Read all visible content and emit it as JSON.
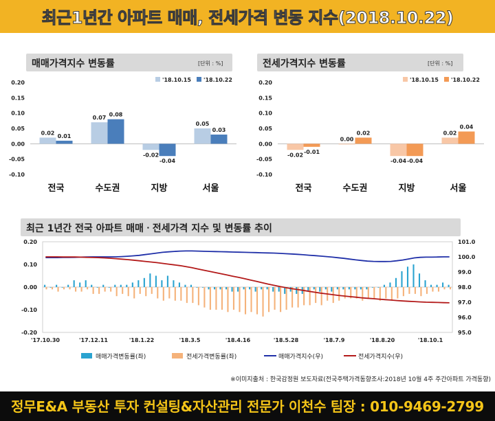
{
  "title": "최근1년간 아파트 매매, 전세가격 변동 지수(2018.10.22)",
  "footer": "정무E&A 부동산 투자 컨설팅&자산관리 전문가 이천수 팀장 : 010-9469-2799",
  "source": "※이미지출처 : 한국감정원 보도자료(전국주택가격동향조사:2018년 10월 4주 주간아파트 가격동향)",
  "colors": {
    "sale_prev": "#b8cde4",
    "sale_curr": "#4a7ebb",
    "jeonse_prev": "#f8c7a6",
    "jeonse_curr": "#f39a55",
    "line_blue": "#1f2fa8",
    "line_red": "#b31919",
    "bar_blue": "#2aa3d0",
    "bar_orange": "#f5b27a"
  },
  "chart_data": [
    {
      "type": "bar",
      "title": "매매가격지수 변동률",
      "unit": "[단위 : %]",
      "categories": [
        "전국",
        "수도권",
        "지방",
        "서울"
      ],
      "series": [
        {
          "name": "'18.10.15",
          "values": [
            0.02,
            0.07,
            -0.02,
            0.05
          ]
        },
        {
          "name": "'18.10.22",
          "values": [
            0.01,
            0.08,
            -0.04,
            0.03
          ]
        }
      ],
      "data_labels": [
        [
          "0.02",
          "0.07",
          "-0.02",
          "0.05"
        ],
        [
          "0.01",
          "0.08",
          "-0.04",
          "0.03"
        ]
      ],
      "ylim": [
        -0.1,
        0.2
      ],
      "yticks": [
        "0.20",
        "0.15",
        "0.10",
        "0.05",
        "0.00",
        "-0.05",
        "-0.10"
      ],
      "legend": "top-right"
    },
    {
      "type": "bar",
      "title": "전세가격지수 변동률",
      "unit": "[단위 : %]",
      "categories": [
        "전국",
        "수도권",
        "지방",
        "서울"
      ],
      "series": [
        {
          "name": "'18.10.15",
          "values": [
            -0.02,
            0.0,
            -0.04,
            0.02
          ]
        },
        {
          "name": "'18.10.22",
          "values": [
            -0.01,
            0.02,
            -0.04,
            0.04
          ]
        }
      ],
      "data_labels": [
        [
          "-0.02",
          "0.00",
          "-0.04",
          "0.02"
        ],
        [
          "-0.01",
          "0.02",
          "-0.04",
          "0.04"
        ]
      ],
      "ylim": [
        -0.1,
        0.2
      ],
      "yticks": [
        "0.20",
        "0.15",
        "0.10",
        "0.05",
        "0.00",
        "-0.05",
        "-0.10"
      ],
      "legend": "top-right"
    },
    {
      "type": "line",
      "title": "최근 1년간 전국 아파트 매매ㆍ전세가격 지수 및 변동률 추이",
      "x_tick_labels": [
        "'17.10.30",
        "'17.12.11",
        "'18.1.22",
        "'18.3.5",
        "'18.4.16",
        "'18.5.28",
        "'18.7.9",
        "'18.8.20",
        "'18.10.1"
      ],
      "ylim_left": [
        -0.2,
        0.2
      ],
      "yticks_left": [
        "0.20",
        "0.10",
        "0.00",
        "-0.10",
        "-0.20"
      ],
      "ylim_right": [
        95.0,
        101.0
      ],
      "yticks_right": [
        "101.0",
        "100.0",
        "99.0",
        "98.0",
        "97.0",
        "96.0",
        "95.0"
      ],
      "legend": "bottom",
      "series": [
        {
          "name": "매매가격변동률(좌)",
          "kind": "bar",
          "axis": "left",
          "values": [
            0.01,
            0.0,
            0.01,
            0.0,
            0.01,
            0.03,
            0.02,
            0.03,
            0.01,
            0.0,
            0.01,
            0.0,
            0.01,
            0.01,
            0.01,
            0.02,
            0.03,
            0.04,
            0.06,
            0.05,
            0.03,
            0.05,
            0.03,
            0.02,
            0.01,
            0.01,
            0.0,
            0.0,
            -0.01,
            -0.01,
            -0.01,
            -0.01,
            -0.02,
            -0.02,
            -0.01,
            -0.01,
            -0.02,
            -0.01,
            -0.01,
            -0.02,
            -0.02,
            -0.03,
            -0.02,
            -0.03,
            -0.03,
            -0.02,
            -0.01,
            -0.02,
            -0.01,
            -0.02,
            -0.01,
            -0.01,
            -0.01,
            -0.01,
            -0.01,
            -0.01,
            0.0,
            0.0,
            0.01,
            0.02,
            0.04,
            0.07,
            0.09,
            0.1,
            0.06,
            0.03,
            0.01,
            0.01,
            0.02,
            0.01
          ]
        },
        {
          "name": "전세가격변동률(좌)",
          "kind": "bar",
          "axis": "left",
          "values": [
            -0.01,
            -0.01,
            -0.02,
            -0.01,
            -0.01,
            -0.02,
            -0.02,
            -0.01,
            -0.03,
            -0.03,
            -0.02,
            -0.02,
            -0.04,
            -0.03,
            -0.04,
            -0.05,
            -0.03,
            -0.04,
            -0.03,
            -0.05,
            -0.06,
            -0.05,
            -0.06,
            -0.06,
            -0.07,
            -0.07,
            -0.08,
            -0.09,
            -0.1,
            -0.1,
            -0.1,
            -0.11,
            -0.1,
            -0.11,
            -0.12,
            -0.11,
            -0.12,
            -0.13,
            -0.11,
            -0.1,
            -0.11,
            -0.1,
            -0.09,
            -0.09,
            -0.08,
            -0.08,
            -0.07,
            -0.08,
            -0.06,
            -0.07,
            -0.06,
            -0.05,
            -0.05,
            -0.05,
            -0.06,
            -0.05,
            -0.05,
            -0.06,
            -0.05,
            -0.06,
            -0.05,
            -0.04,
            -0.03,
            -0.03,
            -0.04,
            -0.03,
            -0.02,
            -0.02,
            -0.01,
            -0.01
          ]
        },
        {
          "name": "매매가격지수(우)",
          "kind": "line",
          "axis": "right",
          "values": [
            99.95,
            99.95,
            99.95,
            99.96,
            99.96,
            99.97,
            99.98,
            99.99,
            100.0,
            100.0,
            100.0,
            100.0,
            100.0,
            100.02,
            100.04,
            100.07,
            100.1,
            100.15,
            100.2,
            100.25,
            100.3,
            100.33,
            100.36,
            100.38,
            100.39,
            100.39,
            100.38,
            100.37,
            100.36,
            100.35,
            100.34,
            100.33,
            100.32,
            100.31,
            100.3,
            100.29,
            100.28,
            100.27,
            100.26,
            100.25,
            100.23,
            100.21,
            100.19,
            100.17,
            100.14,
            100.11,
            100.08,
            100.05,
            100.02,
            99.98,
            99.94,
            99.9,
            99.85,
            99.8,
            99.76,
            99.72,
            99.7,
            99.69,
            99.69,
            99.7,
            99.74,
            99.79,
            99.86,
            99.93,
            99.97,
            99.98,
            99.98,
            99.99,
            100.0,
            100.0
          ]
        },
        {
          "name": "전세가격지수(우)",
          "kind": "line",
          "axis": "right",
          "values": [
            100.0,
            100.0,
            100.0,
            99.99,
            99.99,
            99.99,
            99.98,
            99.97,
            99.96,
            99.95,
            99.93,
            99.91,
            99.88,
            99.85,
            99.82,
            99.78,
            99.74,
            99.7,
            99.66,
            99.62,
            99.57,
            99.52,
            99.47,
            99.42,
            99.35,
            99.28,
            99.2,
            99.12,
            99.04,
            98.96,
            98.88,
            98.8,
            98.72,
            98.64,
            98.56,
            98.47,
            98.38,
            98.29,
            98.2,
            98.12,
            98.04,
            97.97,
            97.9,
            97.84,
            97.78,
            97.72,
            97.66,
            97.6,
            97.55,
            97.5,
            97.45,
            97.41,
            97.37,
            97.33,
            97.29,
            97.26,
            97.23,
            97.2,
            97.17,
            97.14,
            97.11,
            97.08,
            97.06,
            97.04,
            97.02,
            97.0,
            96.99,
            96.98,
            96.97,
            96.96
          ]
        }
      ]
    }
  ]
}
